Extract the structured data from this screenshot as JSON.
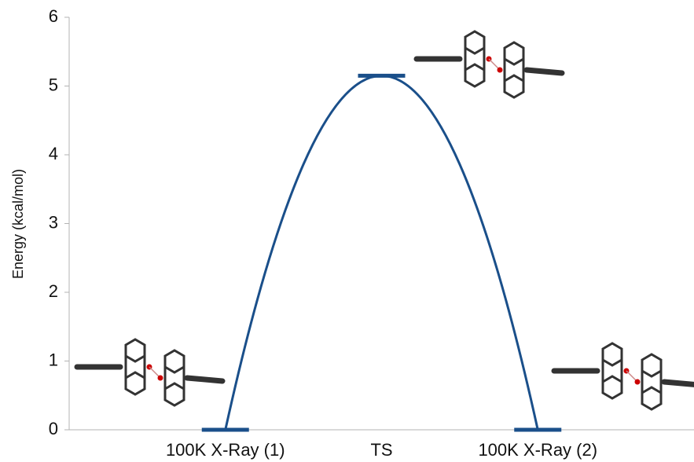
{
  "chart_data": {
    "type": "energy-profile",
    "y_label": "Energy (kcal/mol)",
    "categories": [
      "100K X-Ray (1)",
      "TS",
      "100K X-Ray (2)"
    ],
    "values": [
      0,
      5.15,
      0
    ],
    "color": "#1a4f8a",
    "ylim": [
      0,
      6
    ],
    "yticks": [
      0,
      1,
      2,
      3,
      4,
      5,
      6
    ],
    "grid": false
  }
}
